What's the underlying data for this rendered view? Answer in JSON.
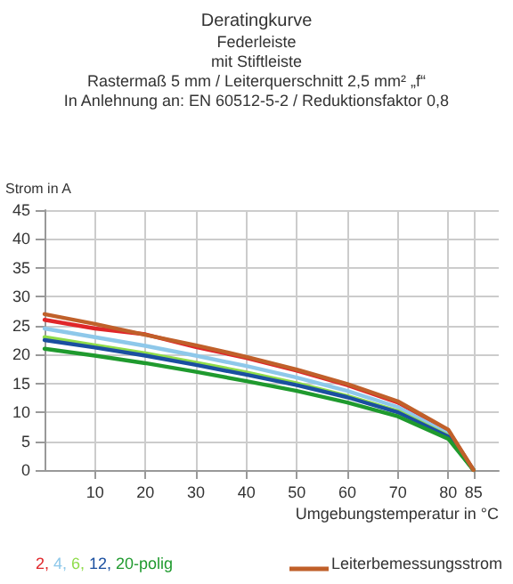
{
  "chart_data": {
    "type": "line",
    "title": "Deratingkurve",
    "subtitle": "Federleiste\nmit Stiftleiste\nRastermaß 5 mm / Leiterquerschnitt 2,5 mm² „f“\nIn Anlehnung an: EN 60512-5-2 / Reduktionsfaktor 0,8",
    "ylabel": "Strom in A",
    "xlabel": "Umgebungstemperatur in °C",
    "x": [
      0,
      10,
      20,
      30,
      40,
      50,
      60,
      70,
      80,
      85
    ],
    "series": [
      {
        "name": "2,",
        "color": "#e0262a",
        "values": [
          26,
          24.5,
          23.5,
          21.3,
          19.4,
          17.2,
          14.7,
          11.7,
          6.8,
          0
        ]
      },
      {
        "name": "4,",
        "color": "#8ec8ea",
        "values": [
          24.5,
          23,
          21.5,
          19.8,
          18,
          16,
          13.7,
          10.9,
          6.3,
          0
        ]
      },
      {
        "name": "6,",
        "color": "#8fdc4a",
        "values": [
          23,
          21.6,
          20.2,
          18.6,
          16.9,
          15,
          12.8,
          10.2,
          5.9,
          0
        ]
      },
      {
        "name": "12,",
        "color": "#1a4fa0",
        "values": [
          22.5,
          21.2,
          19.8,
          18.2,
          16.5,
          14.7,
          12.6,
          10,
          5.8,
          0
        ]
      },
      {
        "name": "20-polig",
        "color": "#1f9a2e",
        "values": [
          21,
          19.8,
          18.5,
          17,
          15.4,
          13.7,
          11.7,
          9.3,
          5.4,
          0
        ]
      },
      {
        "name": "Leiterbemessungsstrom",
        "color": "#c0602a",
        "values": [
          27,
          25.3,
          23.4,
          21.6,
          19.6,
          17.4,
          14.9,
          11.9,
          7,
          0
        ]
      }
    ],
    "xlim": [
      0,
      90
    ],
    "xticks": [
      10,
      20,
      30,
      40,
      50,
      60,
      70,
      80,
      85
    ],
    "ylim": [
      0,
      45
    ],
    "yticks": [
      0,
      5,
      10,
      15,
      20,
      25,
      30,
      35,
      40,
      45
    ],
    "grid": true,
    "legend": "bottom",
    "marker": "none",
    "line_style": "solid"
  }
}
